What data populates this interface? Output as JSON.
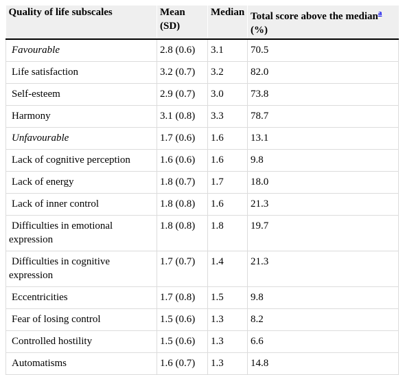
{
  "table": {
    "headers": {
      "col1": "Quality of life subscales",
      "col2_line1": "Mean",
      "col2_line2": "(SD)",
      "col3": "Median",
      "col4_line1": "Total score above the median",
      "col4_note": "a",
      "col4_line2": "(%)"
    },
    "rows": [
      {
        "label": "Favourable",
        "mean": "2.8 (0.6)",
        "median": "3.1",
        "pct": "70.5"
      },
      {
        "label": "Life satisfaction",
        "mean": "3.2 (0.7)",
        "median": "3.2",
        "pct": "82.0"
      },
      {
        "label": "Self-esteem",
        "mean": "2.9 (0.7)",
        "median": "3.0",
        "pct": "73.8"
      },
      {
        "label": "Harmony",
        "mean": "3.1 (0.8)",
        "median": "3.3",
        "pct": "78.7"
      },
      {
        "label": "Unfavourable",
        "mean": "1.7 (0.6)",
        "median": "1.6",
        "pct": "13.1"
      },
      {
        "label": "Lack of cognitive perception",
        "mean": "1.6 (0.6)",
        "median": "1.6",
        "pct": "9.8"
      },
      {
        "label": "Lack of energy",
        "mean": "1.8 (0.7)",
        "median": "1.7",
        "pct": "18.0"
      },
      {
        "label": "Lack of inner control",
        "mean": "1.8 (0.8)",
        "median": "1.6",
        "pct": "21.3"
      },
      {
        "label_line1": "Difficulties in emotional",
        "label_line2": "expression",
        "mean": "1.8 (0.8)",
        "median": "1.8",
        "pct": "19.7"
      },
      {
        "label_line1": "Difficulties in cognitive",
        "label_line2": "expression",
        "mean": "1.7 (0.7)",
        "median": "1.4",
        "pct": "21.3"
      },
      {
        "label": "Eccentricities",
        "mean": "1.7 (0.8)",
        "median": "1.5",
        "pct": "9.8"
      },
      {
        "label": "Fear of losing control",
        "mean": "1.5 (0.6)",
        "median": "1.3",
        "pct": "8.2"
      },
      {
        "label": "Controlled hostility",
        "mean": "1.5 (0.6)",
        "median": "1.3",
        "pct": "6.6"
      },
      {
        "label": "Automatisms",
        "mean": "1.6 (0.7)",
        "median": "1.3",
        "pct": "14.8"
      }
    ]
  },
  "colors": {
    "header_bg": "#efefef",
    "header_rule": "#000000",
    "grid": "#dcdcdc",
    "link": "#0000ee"
  }
}
